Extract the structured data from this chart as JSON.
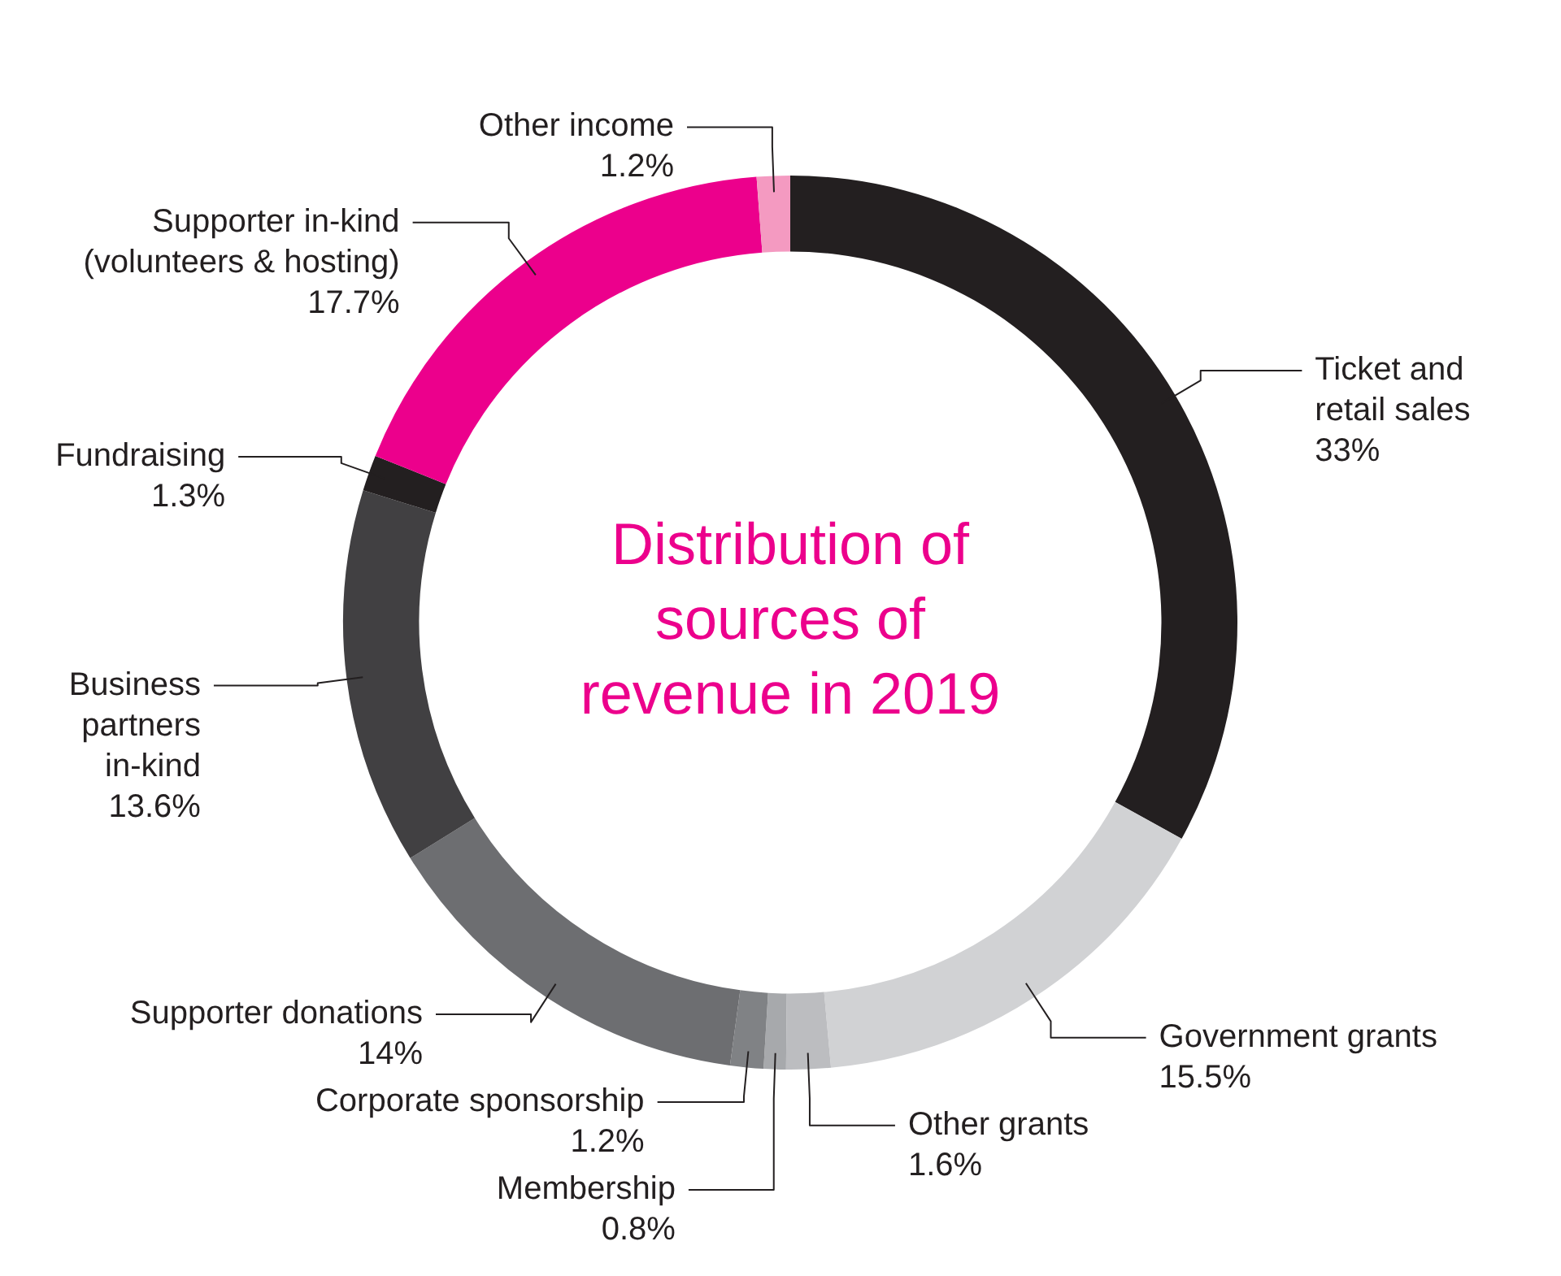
{
  "chart_data": {
    "type": "donut",
    "title": "Distribution of sources of revenue in 2019",
    "categories": [
      "Ticket and\nretail sales",
      "Government grants",
      "Other grants",
      "Membership",
      "Corporate sponsorship",
      "Supporter donations",
      "Business\npartners\nin-kind",
      "Fundraising",
      "Supporter in-kind\n(volunteers & hosting)",
      "Other income"
    ],
    "values": [
      33,
      15.5,
      1.6,
      0.8,
      1.2,
      14,
      13.6,
      1.3,
      17.7,
      1.2
    ],
    "value_labels": [
      "33%",
      "15.5%",
      "1.6%",
      "0.8%",
      "1.2%",
      "14%",
      "13.6%",
      "1.3%",
      "17.7%",
      "1.2%"
    ],
    "colors": [
      "#231f20",
      "#d1d2d4",
      "#bcbdc0",
      "#a7a9ac",
      "#808285",
      "#6d6e71",
      "#414042",
      "#231f20",
      "#ec008c",
      "#f49ac1"
    ],
    "legend": false
  }
}
